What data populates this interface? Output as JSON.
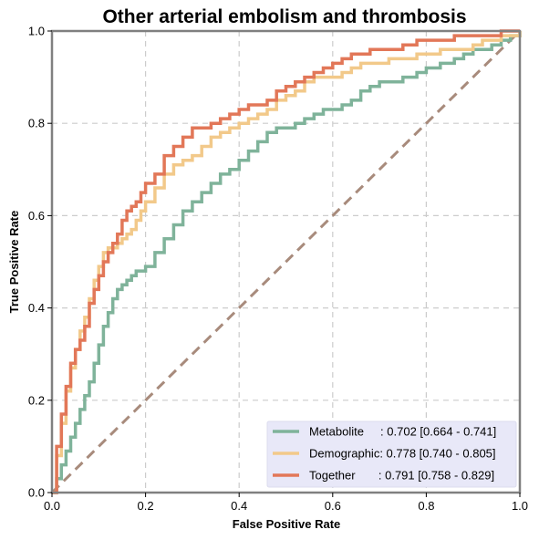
{
  "chart_data": {
    "type": "line",
    "title": "Other arterial embolism and thrombosis",
    "xlabel": "False Positive Rate",
    "ylabel": "True Positive Rate",
    "xlim": [
      0,
      1
    ],
    "ylim": [
      0,
      1
    ],
    "x_ticks": [
      "0.0",
      "0.2",
      "0.4",
      "0.6",
      "0.8",
      "1.0"
    ],
    "y_ticks": [
      "0.0",
      "0.2",
      "0.4",
      "0.6",
      "0.8",
      "1.0"
    ],
    "grid": true,
    "legend_position": "bottom-right",
    "diagonal": {
      "x": [
        0,
        1
      ],
      "y": [
        0,
        1
      ],
      "color": "#a88b7c"
    },
    "series": [
      {
        "name": "Metabolite",
        "legend_label": "Metabolite     : 0.702 [0.664 - 0.741]",
        "color": "#7fb39a",
        "x": [
          0,
          0.01,
          0.02,
          0.03,
          0.04,
          0.05,
          0.06,
          0.07,
          0.08,
          0.09,
          0.1,
          0.11,
          0.12,
          0.13,
          0.14,
          0.15,
          0.16,
          0.17,
          0.18,
          0.19,
          0.2,
          0.22,
          0.24,
          0.26,
          0.28,
          0.3,
          0.32,
          0.34,
          0.36,
          0.38,
          0.4,
          0.42,
          0.44,
          0.46,
          0.48,
          0.5,
          0.52,
          0.54,
          0.56,
          0.58,
          0.6,
          0.62,
          0.64,
          0.66,
          0.68,
          0.7,
          0.72,
          0.75,
          0.78,
          0.8,
          0.83,
          0.86,
          0.88,
          0.9,
          0.92,
          0.94,
          0.96,
          0.98,
          1.0
        ],
        "y": [
          0,
          0.03,
          0.06,
          0.09,
          0.12,
          0.15,
          0.18,
          0.21,
          0.24,
          0.28,
          0.32,
          0.36,
          0.39,
          0.42,
          0.44,
          0.45,
          0.46,
          0.47,
          0.48,
          0.48,
          0.49,
          0.52,
          0.55,
          0.58,
          0.61,
          0.63,
          0.65,
          0.67,
          0.69,
          0.7,
          0.72,
          0.74,
          0.76,
          0.78,
          0.79,
          0.79,
          0.8,
          0.81,
          0.82,
          0.83,
          0.83,
          0.84,
          0.85,
          0.87,
          0.88,
          0.89,
          0.89,
          0.9,
          0.91,
          0.92,
          0.93,
          0.94,
          0.95,
          0.96,
          0.96,
          0.97,
          0.98,
          0.99,
          1.0
        ]
      },
      {
        "name": "Demographic",
        "legend_label": "Demographic: 0.778 [0.740 - 0.805]",
        "color": "#f2c98a",
        "x": [
          0,
          0.01,
          0.02,
          0.03,
          0.04,
          0.05,
          0.06,
          0.07,
          0.08,
          0.09,
          0.1,
          0.11,
          0.12,
          0.13,
          0.14,
          0.15,
          0.16,
          0.17,
          0.18,
          0.19,
          0.2,
          0.22,
          0.24,
          0.26,
          0.28,
          0.3,
          0.32,
          0.34,
          0.36,
          0.38,
          0.4,
          0.42,
          0.44,
          0.46,
          0.48,
          0.5,
          0.52,
          0.54,
          0.56,
          0.58,
          0.6,
          0.62,
          0.64,
          0.66,
          0.68,
          0.7,
          0.72,
          0.75,
          0.78,
          0.8,
          0.83,
          0.86,
          0.88,
          0.9,
          0.92,
          0.94,
          0.96,
          0.98,
          1.0
        ],
        "y": [
          0,
          0.08,
          0.15,
          0.22,
          0.27,
          0.31,
          0.35,
          0.38,
          0.42,
          0.46,
          0.49,
          0.52,
          0.53,
          0.53,
          0.54,
          0.55,
          0.56,
          0.57,
          0.59,
          0.61,
          0.63,
          0.66,
          0.69,
          0.71,
          0.72,
          0.73,
          0.75,
          0.77,
          0.78,
          0.79,
          0.8,
          0.81,
          0.82,
          0.83,
          0.85,
          0.86,
          0.87,
          0.89,
          0.9,
          0.9,
          0.9,
          0.91,
          0.92,
          0.93,
          0.93,
          0.93,
          0.94,
          0.94,
          0.95,
          0.95,
          0.96,
          0.96,
          0.96,
          0.97,
          0.98,
          0.98,
          0.99,
          0.99,
          1.0
        ]
      },
      {
        "name": "Together",
        "legend_label": "Together       : 0.791 [0.758 - 0.829]",
        "color": "#e27758",
        "x": [
          0,
          0.01,
          0.02,
          0.03,
          0.04,
          0.05,
          0.06,
          0.07,
          0.08,
          0.09,
          0.1,
          0.11,
          0.12,
          0.13,
          0.14,
          0.15,
          0.16,
          0.17,
          0.18,
          0.19,
          0.2,
          0.22,
          0.24,
          0.26,
          0.28,
          0.3,
          0.32,
          0.34,
          0.36,
          0.38,
          0.4,
          0.42,
          0.44,
          0.46,
          0.48,
          0.5,
          0.52,
          0.54,
          0.56,
          0.58,
          0.6,
          0.62,
          0.64,
          0.66,
          0.68,
          0.7,
          0.72,
          0.75,
          0.78,
          0.8,
          0.83,
          0.86,
          0.88,
          0.9,
          0.92,
          0.94,
          0.96,
          0.98,
          1.0
        ],
        "y": [
          0,
          0.1,
          0.17,
          0.23,
          0.28,
          0.31,
          0.33,
          0.36,
          0.41,
          0.44,
          0.47,
          0.5,
          0.52,
          0.54,
          0.56,
          0.59,
          0.61,
          0.62,
          0.63,
          0.65,
          0.67,
          0.69,
          0.73,
          0.75,
          0.77,
          0.79,
          0.79,
          0.8,
          0.81,
          0.82,
          0.83,
          0.84,
          0.84,
          0.85,
          0.87,
          0.88,
          0.89,
          0.9,
          0.91,
          0.92,
          0.93,
          0.94,
          0.95,
          0.95,
          0.96,
          0.96,
          0.96,
          0.97,
          0.98,
          0.98,
          0.98,
          0.99,
          0.99,
          0.99,
          0.99,
          0.99,
          1.0,
          1.0,
          1.0
        ]
      }
    ]
  }
}
